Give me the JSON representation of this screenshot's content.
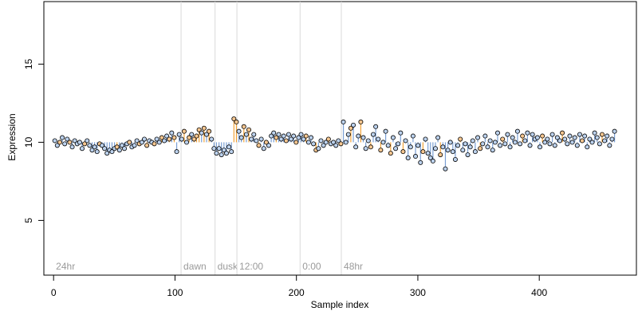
{
  "chart_data": {
    "type": "scatter",
    "title": "",
    "xlabel": "Sample index",
    "ylabel": "Expression",
    "xlim": [
      -8,
      480
    ],
    "ylim": [
      1.5,
      19
    ],
    "x_ticks": [
      0,
      100,
      200,
      300,
      400
    ],
    "y_ticks": [
      5,
      10,
      15
    ],
    "grid": false,
    "legend": "none",
    "colors": {
      "point_fill_warm": "#f5c690",
      "point_fill_cool": "#bcd2ee",
      "point_stroke": "#000000",
      "stick_warm": "#f2a33a",
      "stick_cool": "#7a9fd4",
      "phase_line": "#d9d9d9",
      "phase_text": "#9a9a9a"
    },
    "baseline": 10,
    "phase_markers": [
      {
        "x": 0,
        "label": "24hr",
        "line": false
      },
      {
        "x": 105,
        "label": "dawn",
        "line": true
      },
      {
        "x": 133,
        "label": "dusk",
        "line": true
      },
      {
        "x": 151,
        "label": "12:00",
        "line": true
      },
      {
        "x": 203,
        "label": "0:00",
        "line": true
      },
      {
        "x": 237,
        "label": "48hr",
        "line": true
      }
    ],
    "series": [
      {
        "values": [
          10.1,
          9.8,
          10.0,
          10.3,
          9.9,
          10.2,
          10.0,
          9.7,
          10.1,
          9.9,
          10.0,
          9.6,
          9.9,
          10.1,
          9.8,
          9.5,
          9.7,
          9.4,
          9.9,
          9.8,
          9.6,
          9.3,
          9.5,
          9.4,
          9.6,
          9.7,
          9.5,
          9.8,
          9.6,
          9.9,
          10.0,
          9.7,
          9.8,
          10.1,
          9.9,
          10.0,
          10.2,
          9.8,
          10.1,
          10.0,
          9.9,
          10.2,
          10.0,
          10.3,
          10.1,
          10.4,
          10.2,
          10.6,
          10.3,
          9.4,
          10.5,
          10.2,
          10.7,
          10.0,
          10.3,
          10.5,
          10.2,
          10.4,
          10.8,
          10.6,
          10.9,
          10.5,
          10.7,
          10.2,
          9.6,
          9.3,
          9.6,
          9.2,
          9.5,
          9.3,
          9.7,
          9.4,
          11.5,
          11.3,
          10.7,
          10.3,
          11.0,
          10.5,
          10.8,
          10.2,
          10.5,
          10.1,
          9.8,
          10.2,
          9.6,
          10.0,
          9.8,
          10.4,
          10.6,
          10.3,
          10.5,
          10.2,
          10.4,
          10.1,
          10.5,
          10.2,
          10.4,
          10.0,
          10.3,
          10.5,
          10.2,
          10.4,
          10.0,
          10.3,
          9.9,
          9.5,
          9.6,
          10.1,
          9.8,
          10.0,
          10.2,
          9.9,
          10.0,
          9.8,
          10.1,
          9.9,
          11.3,
          10.0,
          10.5,
          10.9,
          11.1,
          9.7,
          10.4,
          11.3,
          10.3,
          9.6,
          10.1,
          9.7,
          10.5,
          11.0,
          10.2,
          9.5,
          10.0,
          10.7,
          9.8,
          9.3,
          10.3,
          9.6,
          9.9,
          10.6,
          9.4,
          10.1,
          9.0,
          9.7,
          10.4,
          9.1,
          9.8,
          8.7,
          9.4,
          10.2,
          9.3,
          9.0,
          8.8,
          9.6,
          10.3,
          9.2,
          9.7,
          8.3,
          9.5,
          10.0,
          9.4,
          8.9,
          9.8,
          10.2,
          9.5,
          9.9,
          9.2,
          9.7,
          10.1,
          9.4,
          10.3,
          9.6,
          9.9,
          10.4,
          9.7,
          10.1,
          9.5,
          10.0,
          10.6,
          9.8,
          10.2,
          9.9,
          10.5,
          9.7,
          10.3,
          10.0,
          10.7,
          9.9,
          10.4,
          10.1,
          10.6,
          9.8,
          10.5,
          10.2,
          10.3,
          9.7,
          10.4,
          10.0,
          10.2,
          9.9,
          10.5,
          9.8,
          10.3,
          10.1,
          10.6,
          10.2,
          9.9,
          10.4,
          10.0,
          10.3,
          9.8,
          10.5,
          10.1,
          10.4,
          9.7,
          10.2,
          10.0,
          10.6,
          10.3,
          9.9,
          10.5,
          10.1,
          10.4,
          9.8,
          10.2,
          10.7
        ],
        "warm_indices": [
          2,
          6,
          12,
          18,
          25,
          30,
          34,
          37,
          40,
          43,
          46,
          48,
          52,
          54,
          56,
          57,
          58,
          60,
          62,
          72,
          73,
          76,
          78,
          82,
          85,
          89,
          93,
          97,
          101,
          105,
          110,
          115,
          119,
          123,
          127,
          131,
          135,
          140,
          148,
          155,
          163,
          171,
          180,
          188,
          196,
          204,
          212,
          220,
          228
        ]
      }
    ]
  }
}
